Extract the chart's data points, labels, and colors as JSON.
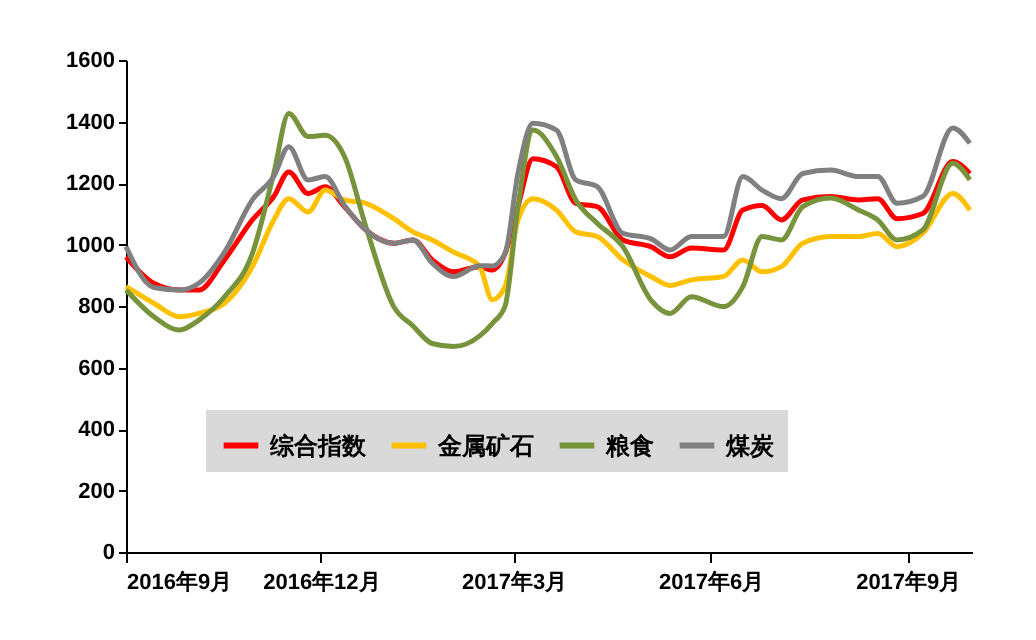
{
  "chart_data": {
    "type": "line",
    "x": [
      "2016-09-01",
      "2016-09-14",
      "2016-09-26",
      "2016-10-05",
      "2016-10-17",
      "2016-10-30",
      "2016-11-09",
      "2016-11-16",
      "2016-11-25",
      "2016-12-03",
      "2016-12-12",
      "2016-12-22",
      "2017-01-04",
      "2017-01-13",
      "2017-01-22",
      "2017-02-01",
      "2017-02-13",
      "2017-02-19",
      "2017-02-25",
      "2017-03-03",
      "2017-03-10",
      "2017-03-21",
      "2017-03-30",
      "2017-04-09",
      "2017-04-21",
      "2017-05-04",
      "2017-05-13",
      "2017-05-23",
      "2017-06-07",
      "2017-06-16",
      "2017-06-25",
      "2017-07-04",
      "2017-07-14",
      "2017-07-27",
      "2017-08-09",
      "2017-08-18",
      "2017-08-27",
      "2017-09-08",
      "2017-09-22",
      "2017-09-30"
    ],
    "series": [
      {
        "name": "综合指数",
        "color": "#ff0000",
        "values": [
          960,
          874,
          852,
          852,
          950,
          1080,
          1156,
          1236,
          1166,
          1188,
          1123,
          1047,
          1004,
          1015,
          950,
          911,
          928,
          917,
          971,
          1123,
          1279,
          1253,
          1134,
          1123,
          1015,
          993,
          960,
          989,
          982,
          1112,
          1127,
          1080,
          1145,
          1156,
          1145,
          1149,
          1084,
          1101,
          1270,
          1231
        ]
      },
      {
        "name": "金属矿石",
        "color": "#ffc000",
        "values": [
          863,
          809,
          765,
          776,
          809,
          928,
          1080,
          1149,
          1106,
          1177,
          1145,
          1134,
          1084,
          1041,
          1015,
          975,
          930,
          820,
          863,
          1080,
          1149,
          1112,
          1041,
          1026,
          950,
          896,
          867,
          885,
          896,
          950,
          911,
          928,
          1004,
          1026,
          1026,
          1036,
          993,
          1036,
          1166,
          1112
        ]
      },
      {
        "name": "粮食",
        "color": "#77933c",
        "values": [
          852,
          765,
          722,
          754,
          830,
          971,
          1231,
          1426,
          1351,
          1355,
          1286,
          1058,
          798,
          735,
          678,
          668,
          702,
          743,
          800,
          1123,
          1372,
          1286,
          1145,
          1069,
          993,
          820,
          776,
          830,
          798,
          863,
          1026,
          1015,
          1123,
          1151,
          1112,
          1080,
          1015,
          1047,
          1264,
          1210
        ]
      },
      {
        "name": "煤炭",
        "color": "#808080",
        "values": [
          993,
          860,
          852,
          874,
          975,
          1145,
          1221,
          1318,
          1210,
          1221,
          1127,
          1047,
          1004,
          1015,
          939,
          896,
          931,
          930,
          971,
          1231,
          1394,
          1372,
          1210,
          1188,
          1036,
          1019,
          982,
          1026,
          1026,
          1221,
          1177,
          1149,
          1231,
          1242,
          1221,
          1221,
          1134,
          1156,
          1379,
          1329
        ]
      }
    ],
    "xlim": [
      "2016-09-01",
      "2017-10-01"
    ],
    "xticks": [
      {
        "value": "2016-09-01",
        "label": "2016年9月"
      },
      {
        "value": "2016-12-01",
        "label": "2016年12月"
      },
      {
        "value": "2017-03-01",
        "label": "2017年3月"
      },
      {
        "value": "2017-06-01",
        "label": "2017年6月"
      },
      {
        "value": "2017-09-01",
        "label": "2017年9月"
      }
    ],
    "ylim": [
      0,
      1600
    ],
    "yticks": [
      0,
      200,
      400,
      600,
      800,
      1000,
      1200,
      1400,
      1600
    ],
    "grid": false,
    "legend": "bottom",
    "marker": "none",
    "line_style": "solid"
  }
}
